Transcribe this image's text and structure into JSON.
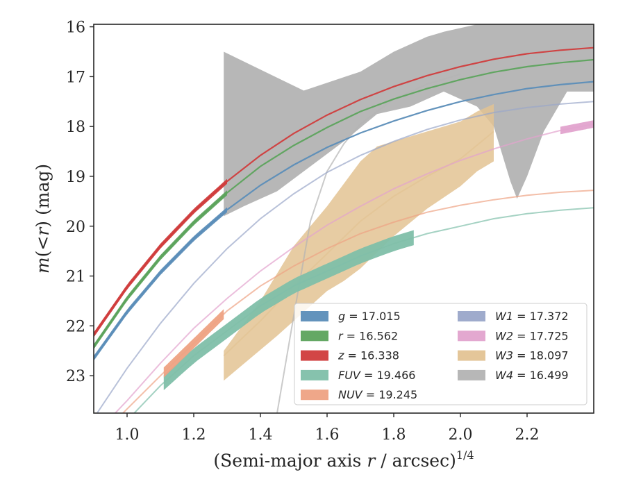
{
  "chart_data": {
    "type": "line",
    "title": "",
    "xlabel": "(Semi-major axis r / arcsec)^1/4",
    "xlabel_parts": {
      "pre": "(Semi-major axis ",
      "var": "r",
      "post": " / arcsec)",
      "sup": "1/4"
    },
    "ylabel": "m(<r) (mag)",
    "ylabel_parts": {
      "var": "m",
      "mid": "(<",
      "var2": "r",
      "post": ") (mag)"
    },
    "xlim": [
      0.9,
      2.4
    ],
    "ylim": [
      23.75,
      15.95
    ],
    "y_inverted": true,
    "x_ticks": [
      1.0,
      1.2,
      1.4,
      1.6,
      1.8,
      2.0,
      2.2
    ],
    "x_tick_labels": [
      "1.0",
      "1.2",
      "1.4",
      "1.6",
      "1.8",
      "2.0",
      "2.2"
    ],
    "y_ticks": [
      16,
      17,
      18,
      19,
      20,
      21,
      22,
      23
    ],
    "y_tick_labels": [
      "16",
      "17",
      "18",
      "19",
      "20",
      "21",
      "22",
      "23"
    ],
    "grid": false,
    "legend_position": "lower-right",
    "series": [
      {
        "name": "g = 17.015",
        "band": "g",
        "value": "17.015",
        "color": "#5b8db8",
        "x": [
          0.9,
          1.0,
          1.1,
          1.2,
          1.3,
          1.4,
          1.5,
          1.6,
          1.7,
          1.8,
          1.9,
          2.0,
          2.1,
          2.2,
          2.3,
          2.4
        ],
        "y": [
          22.65,
          21.72,
          20.93,
          20.25,
          19.67,
          19.18,
          18.77,
          18.42,
          18.13,
          17.89,
          17.68,
          17.5,
          17.36,
          17.24,
          17.16,
          17.1
        ],
        "band_x": [
          0.9,
          1.3
        ],
        "band_width_mag": 0.1
      },
      {
        "name": "r = 16.562",
        "band": "r",
        "value": "16.562",
        "color": "#5ca35c",
        "x": [
          0.9,
          1.0,
          1.1,
          1.2,
          1.3,
          1.4,
          1.5,
          1.6,
          1.7,
          1.8,
          1.9,
          2.0,
          2.1,
          2.2,
          2.3,
          2.4
        ],
        "y": [
          22.42,
          21.45,
          20.63,
          19.93,
          19.33,
          18.8,
          18.38,
          18.02,
          17.7,
          17.45,
          17.24,
          17.06,
          16.91,
          16.8,
          16.72,
          16.66
        ],
        "band_x": [
          0.9,
          1.3
        ],
        "band_width_mag": 0.1
      },
      {
        "name": "z = 16.338",
        "band": "z",
        "value": "16.338",
        "color": "#d03c3c",
        "x": [
          0.9,
          1.0,
          1.1,
          1.2,
          1.3,
          1.4,
          1.5,
          1.6,
          1.7,
          1.8,
          1.9,
          2.0,
          2.1,
          2.2,
          2.3,
          2.4
        ],
        "y": [
          22.18,
          21.22,
          20.4,
          19.7,
          19.1,
          18.58,
          18.14,
          17.77,
          17.46,
          17.2,
          16.98,
          16.8,
          16.65,
          16.54,
          16.47,
          16.42
        ],
        "band_x": [
          0.9,
          1.3
        ],
        "band_width_mag": 0.1
      },
      {
        "name": "FUV = 19.466",
        "band": "FUV",
        "value": "19.466",
        "color": "#7fbfa9",
        "x": [
          1.0,
          1.1,
          1.2,
          1.3,
          1.4,
          1.5,
          1.6,
          1.7,
          1.8,
          1.9,
          2.0,
          2.1,
          2.2,
          2.3,
          2.4
        ],
        "y": [
          23.9,
          23.2,
          22.6,
          22.1,
          21.6,
          21.2,
          20.9,
          20.6,
          20.35,
          20.15,
          20.0,
          19.85,
          19.75,
          19.68,
          19.63
        ],
        "band_x": [
          1.11,
          1.86
        ],
        "band_width_mag": 0.3
      },
      {
        "name": "NUV = 19.245",
        "band": "NUV",
        "value": "19.245",
        "color": "#eea283",
        "x": [
          0.98,
          1.1,
          1.2,
          1.3,
          1.4,
          1.5,
          1.6,
          1.7,
          1.8,
          1.9,
          2.0,
          2.1,
          2.2,
          2.3,
          2.4
        ],
        "y": [
          23.8,
          23.0,
          22.35,
          21.7,
          21.2,
          20.8,
          20.45,
          20.15,
          19.92,
          19.72,
          19.58,
          19.47,
          19.38,
          19.32,
          19.28
        ],
        "band_x": [
          1.11,
          1.29
        ],
        "band_width_mag": 0.2
      },
      {
        "name": "W1 = 17.372",
        "band": "W1",
        "value": "17.372",
        "color": "#9aa6c9",
        "x": [
          0.9,
          1.0,
          1.1,
          1.2,
          1.3,
          1.4,
          1.5,
          1.6,
          1.7,
          1.8,
          1.9,
          2.0,
          2.1,
          2.2,
          2.3,
          2.4
        ],
        "y": [
          23.85,
          22.85,
          21.95,
          21.15,
          20.45,
          19.85,
          19.35,
          18.92,
          18.58,
          18.3,
          18.06,
          17.87,
          17.72,
          17.62,
          17.55,
          17.5
        ],
        "band_x": [],
        "band_width_mag": 0
      },
      {
        "name": "W2 = 17.725",
        "band": "W2",
        "value": "17.725",
        "color": "#e2a3cd",
        "x": [
          0.95,
          1.0,
          1.1,
          1.2,
          1.3,
          1.4,
          1.5,
          1.6,
          1.7,
          1.8,
          1.9,
          2.0,
          2.1,
          2.2,
          2.3,
          2.4
        ],
        "y": [
          23.85,
          23.5,
          22.75,
          22.05,
          21.45,
          20.9,
          20.42,
          19.98,
          19.6,
          19.25,
          18.95,
          18.68,
          18.45,
          18.25,
          18.08,
          17.95
        ],
        "band_x": [
          2.3,
          2.4
        ],
        "band_width_mag": 0.15
      },
      {
        "name": "W3 = 18.097",
        "band": "W3",
        "value": "18.097",
        "color": "#e3c393",
        "x": [
          1.29,
          1.4,
          1.5,
          1.6,
          1.7,
          1.8,
          1.9,
          2.0,
          2.1
        ],
        "y": [
          22.6,
          21.9,
          21.2,
          20.55,
          19.9,
          19.4,
          19.0,
          18.65,
          18.1
        ],
        "band_x": [
          1.29,
          2.1
        ],
        "band_width_mag": 0
      },
      {
        "name": "W4 = 16.499",
        "band": "W4",
        "value": "16.499",
        "color": "#b3b3b3",
        "x": [
          1.45,
          1.5,
          1.55,
          1.6,
          1.65,
          1.7,
          1.8,
          1.9,
          2.0
        ],
        "y": [
          23.75,
          21.8,
          19.9,
          18.9,
          18.35,
          17.95,
          17.45,
          17.15,
          16.95
        ],
        "band_x": [
          1.29,
          2.4
        ],
        "band_width_mag": 0
      }
    ],
    "w4_band": {
      "upper": {
        "x": [
          1.29,
          1.53,
          1.7,
          1.8,
          1.9,
          1.95,
          2.05,
          2.15,
          2.25,
          2.4
        ],
        "y": [
          16.5,
          17.28,
          16.9,
          16.5,
          16.2,
          16.1,
          15.95,
          15.95,
          15.95,
          15.95
        ]
      },
      "lower": {
        "x": [
          1.29,
          1.29,
          1.35,
          1.45,
          1.55,
          1.65,
          1.75,
          1.85,
          1.95,
          2.05,
          2.1,
          2.15,
          2.17,
          2.2,
          2.25,
          2.32,
          2.4
        ],
        "y": [
          23.75,
          19.8,
          19.6,
          19.3,
          18.8,
          18.3,
          17.75,
          17.6,
          17.3,
          17.6,
          18.0,
          19.1,
          19.45,
          19.0,
          18.1,
          17.3,
          17.3
        ]
      },
      "color": "#b3b3b3"
    },
    "w3_band": {
      "upper": {
        "x": [
          1.29,
          1.4,
          1.5,
          1.6,
          1.7,
          1.75,
          1.85,
          1.95,
          2.0,
          2.05,
          2.1
        ],
        "y": [
          22.5,
          21.5,
          20.4,
          19.6,
          18.7,
          18.4,
          18.2,
          18.0,
          17.9,
          17.7,
          17.55
        ]
      },
      "lower": {
        "x": [
          1.29,
          1.45,
          1.55,
          1.6,
          1.65,
          1.7,
          1.8,
          1.9,
          2.0,
          2.05,
          2.1
        ],
        "y": [
          23.1,
          22.2,
          21.6,
          21.3,
          21.1,
          20.85,
          20.2,
          19.65,
          19.2,
          18.9,
          18.7
        ]
      },
      "color": "#e3c393"
    }
  }
}
